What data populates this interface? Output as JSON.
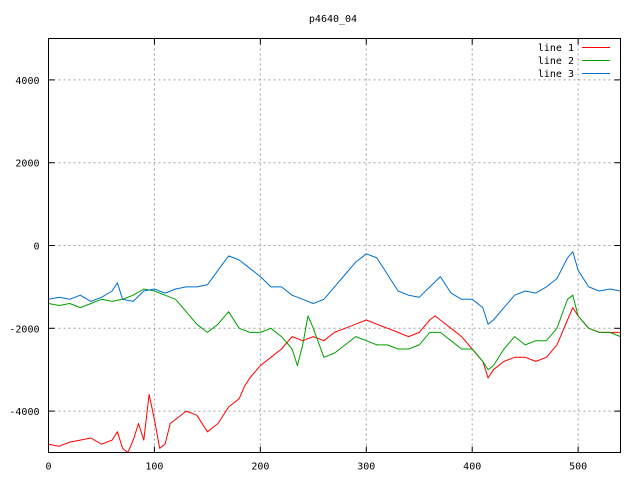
{
  "chart_data": {
    "type": "line",
    "title": "p4640_04",
    "xlabel": "",
    "ylabel": "",
    "xlim": [
      0,
      540
    ],
    "ylim": [
      -5000,
      5000
    ],
    "x_ticks": [
      0,
      100,
      200,
      300,
      400,
      500
    ],
    "y_ticks": [
      -4000,
      -2000,
      0,
      2000,
      4000
    ],
    "grid": true,
    "legend_position": "top-right",
    "series": [
      {
        "name": "line 1",
        "color": "#ff0000",
        "x": [
          0,
          10,
          20,
          30,
          40,
          50,
          60,
          65,
          70,
          75,
          80,
          85,
          90,
          95,
          100,
          105,
          110,
          115,
          120,
          130,
          140,
          150,
          160,
          170,
          180,
          185,
          190,
          200,
          210,
          220,
          230,
          240,
          250,
          260,
          270,
          280,
          290,
          300,
          310,
          320,
          330,
          340,
          350,
          360,
          365,
          370,
          380,
          390,
          400,
          410,
          415,
          420,
          430,
          440,
          450,
          460,
          470,
          480,
          490,
          495,
          500,
          510,
          520,
          530,
          540
        ],
        "y": [
          -4800,
          -4850,
          -4750,
          -4700,
          -4650,
          -4800,
          -4700,
          -4500,
          -4900,
          -5000,
          -4700,
          -4300,
          -4700,
          -3600,
          -4200,
          -4900,
          -4800,
          -4300,
          -4200,
          -4000,
          -4100,
          -4500,
          -4300,
          -3900,
          -3700,
          -3400,
          -3200,
          -2900,
          -2700,
          -2500,
          -2200,
          -2300,
          -2200,
          -2300,
          -2100,
          -2000,
          -1900,
          -1800,
          -1900,
          -2000,
          -2100,
          -2200,
          -2100,
          -1800,
          -1700,
          -1800,
          -2000,
          -2200,
          -2500,
          -2800,
          -3200,
          -3000,
          -2800,
          -2700,
          -2700,
          -2800,
          -2700,
          -2400,
          -1800,
          -1500,
          -1700,
          -2000,
          -2100,
          -2100,
          -2100
        ]
      },
      {
        "name": "line 2",
        "color": "#00a000",
        "x": [
          0,
          10,
          20,
          30,
          40,
          50,
          60,
          70,
          80,
          90,
          100,
          110,
          120,
          130,
          140,
          150,
          160,
          170,
          180,
          190,
          200,
          210,
          220,
          230,
          235,
          240,
          245,
          250,
          260,
          270,
          280,
          290,
          300,
          310,
          320,
          330,
          340,
          350,
          360,
          370,
          380,
          390,
          400,
          410,
          415,
          420,
          430,
          440,
          450,
          460,
          470,
          480,
          490,
          495,
          500,
          510,
          520,
          530,
          540
        ],
        "y": [
          -1400,
          -1450,
          -1400,
          -1500,
          -1400,
          -1300,
          -1350,
          -1300,
          -1200,
          -1050,
          -1100,
          -1200,
          -1300,
          -1600,
          -1900,
          -2100,
          -1900,
          -1600,
          -2000,
          -2100,
          -2100,
          -2000,
          -2200,
          -2500,
          -2900,
          -2400,
          -1700,
          -2000,
          -2700,
          -2600,
          -2400,
          -2200,
          -2300,
          -2400,
          -2400,
          -2500,
          -2500,
          -2400,
          -2100,
          -2100,
          -2300,
          -2500,
          -2500,
          -2800,
          -3000,
          -2900,
          -2500,
          -2200,
          -2400,
          -2300,
          -2300,
          -2000,
          -1300,
          -1200,
          -1700,
          -2000,
          -2100,
          -2100,
          -2200
        ]
      },
      {
        "name": "line 3",
        "color": "#0070d0",
        "x": [
          0,
          10,
          20,
          30,
          40,
          50,
          60,
          65,
          70,
          80,
          90,
          100,
          110,
          120,
          130,
          140,
          150,
          160,
          170,
          180,
          190,
          200,
          210,
          220,
          230,
          240,
          250,
          260,
          270,
          280,
          290,
          300,
          310,
          320,
          330,
          340,
          350,
          360,
          370,
          380,
          390,
          400,
          410,
          415,
          420,
          430,
          440,
          450,
          460,
          470,
          480,
          490,
          495,
          500,
          510,
          520,
          530,
          540
        ],
        "y": [
          -1300,
          -1250,
          -1300,
          -1200,
          -1350,
          -1250,
          -1100,
          -900,
          -1300,
          -1350,
          -1100,
          -1050,
          -1150,
          -1050,
          -1000,
          -1000,
          -950,
          -600,
          -250,
          -350,
          -550,
          -750,
          -1000,
          -1000,
          -1200,
          -1300,
          -1400,
          -1300,
          -1000,
          -700,
          -400,
          -200,
          -300,
          -700,
          -1100,
          -1200,
          -1250,
          -1000,
          -750,
          -1150,
          -1300,
          -1300,
          -1500,
          -1900,
          -1800,
          -1500,
          -1200,
          -1100,
          -1150,
          -1000,
          -800,
          -300,
          -150,
          -600,
          -1000,
          -1100,
          -1050,
          -1100
        ]
      }
    ]
  }
}
